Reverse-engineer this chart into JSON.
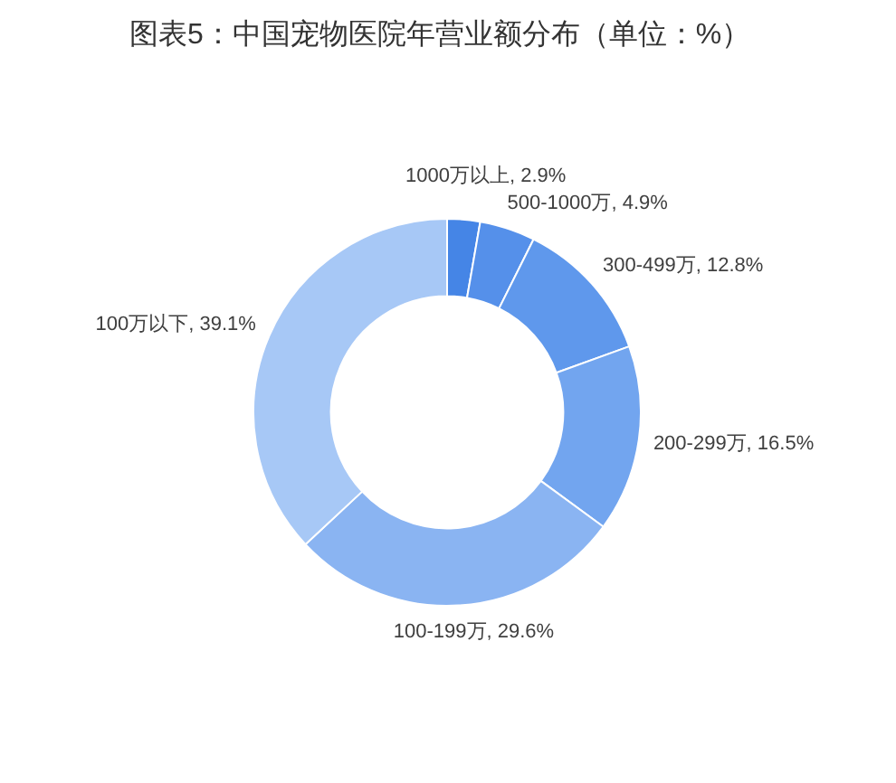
{
  "chart_data": {
    "type": "donut",
    "title": "图表5：中国宠物医院年营业额分布（单位：%）",
    "categories": [
      "1000万以上",
      "500-1000万",
      "300-499万",
      "200-299万",
      "100-199万",
      "100万以下"
    ],
    "values": [
      2.9,
      4.9,
      12.8,
      16.5,
      29.6,
      39.1
    ],
    "colors": [
      "#4585e6",
      "#5590ea",
      "#5f98ec",
      "#72a5ef",
      "#8ab4f2",
      "#a7c8f6"
    ],
    "value_labels": [
      "2.9%",
      "4.9%",
      "12.8%",
      "16.5%",
      "29.6%",
      "39.1%"
    ]
  }
}
